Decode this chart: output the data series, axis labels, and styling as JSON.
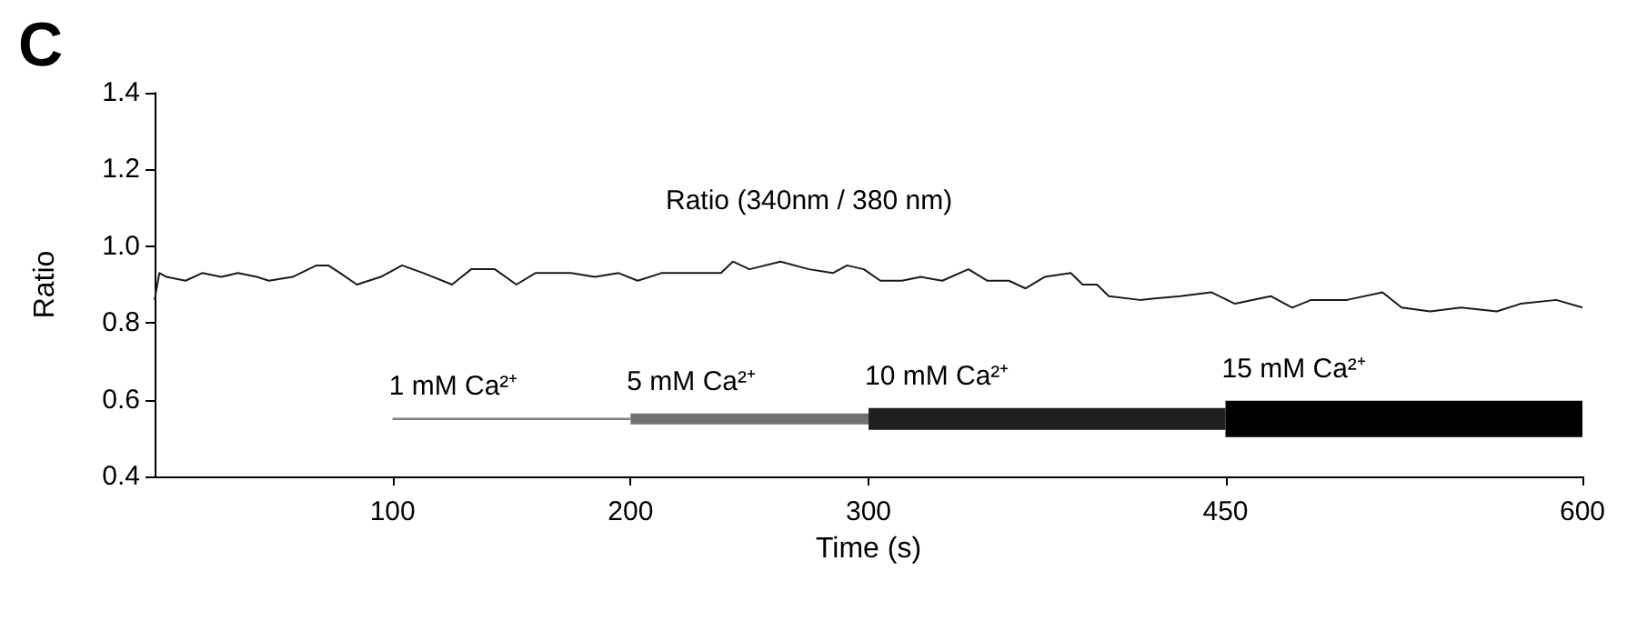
{
  "chart_data": {
    "type": "line",
    "xlabel": "Time (s)",
    "ylabel": "Ratio",
    "annotations": [
      "C"
    ],
    "xlim": [
      0,
      600
    ],
    "xticks": [
      100,
      200,
      300,
      450,
      600
    ],
    "ylim": [
      0.4,
      1.4
    ],
    "yticks": [
      0.4,
      0.6,
      0.8,
      {
        "value": 1,
        "label": "1.0"
      },
      1.2,
      1.4
    ],
    "grid": false,
    "legend": false,
    "marker": "none",
    "line_style": "solid",
    "series": [
      {
        "name": "Ratio (340nm / 380 nm)",
        "color": "#1a1a1a",
        "x": [
          0,
          2,
          5,
          13,
          20,
          28,
          35,
          43,
          48,
          58,
          68,
          73,
          78,
          85,
          95,
          104,
          113,
          125,
          133,
          143,
          152,
          160,
          175,
          185,
          195,
          203,
          213,
          228,
          238,
          243,
          250,
          263,
          275,
          285,
          291,
          298,
          305,
          314,
          322,
          331,
          342,
          350,
          359,
          366,
          374,
          385,
          390,
          396,
          401,
          414,
          431,
          444,
          454,
          469,
          478,
          486,
          501,
          516,
          524,
          536,
          549,
          564,
          574,
          589,
          600
        ],
        "values": [
          0.86,
          0.93,
          0.92,
          0.91,
          0.93,
          0.92,
          0.93,
          0.92,
          0.91,
          0.92,
          0.95,
          0.95,
          0.93,
          0.9,
          0.92,
          0.95,
          0.93,
          0.9,
          0.94,
          0.94,
          0.9,
          0.93,
          0.93,
          0.92,
          0.93,
          0.91,
          0.93,
          0.93,
          0.93,
          0.96,
          0.94,
          0.96,
          0.94,
          0.93,
          0.95,
          0.94,
          0.91,
          0.91,
          0.92,
          0.91,
          0.94,
          0.91,
          0.91,
          0.89,
          0.92,
          0.93,
          0.9,
          0.9,
          0.87,
          0.86,
          0.87,
          0.88,
          0.85,
          0.87,
          0.84,
          0.86,
          0.86,
          0.88,
          0.84,
          0.83,
          0.84,
          0.83,
          0.85,
          0.86,
          0.84
        ]
      },
      {
        "name": "1 mM Ca²⁺",
        "color": "#808080",
        "x": [
          100,
          200
        ],
        "values": [
          0.55,
          0.55
        ]
      },
      {
        "name": "5 mM Ca²⁺",
        "color": "#707070",
        "x": [
          200,
          300
        ],
        "values": [
          0.55,
          0.55
        ]
      },
      {
        "name": "10 mM Ca²⁺",
        "color": "#202020",
        "x": [
          300,
          450
        ],
        "values": [
          0.55,
          0.55
        ]
      },
      {
        "name": "15 mM Ca²⁺",
        "color": "#000000",
        "x": [
          450,
          600
        ],
        "values": [
          0.55,
          0.55
        ]
      }
    ]
  }
}
